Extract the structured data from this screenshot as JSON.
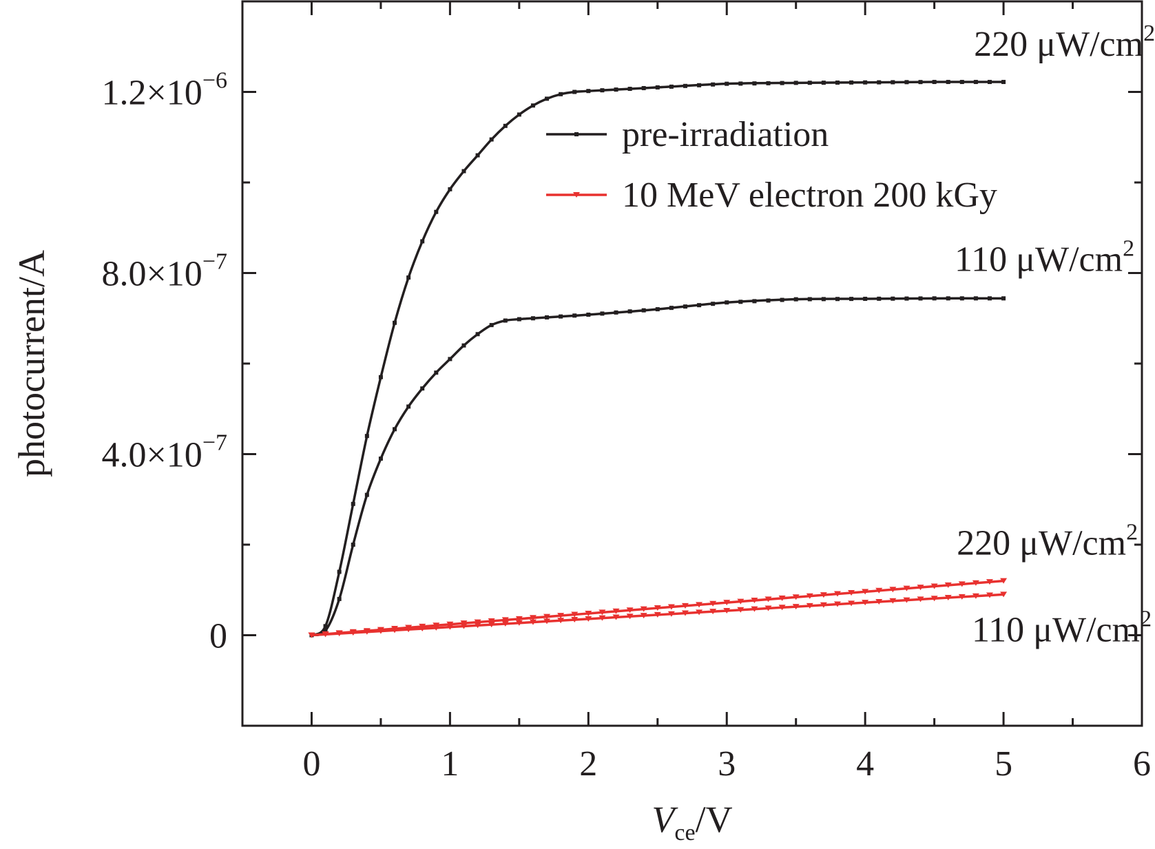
{
  "chart_data": {
    "type": "line",
    "xlabel_main": "V",
    "xlabel_sub": "ce",
    "xlabel_rest": "/V",
    "ylabel": "photocurrent/A",
    "xlim": [
      -0.5,
      6.0
    ],
    "ylim": [
      -2e-07,
      1.4e-06
    ],
    "x_ticks": [
      0,
      1,
      2,
      3,
      4,
      5,
      6
    ],
    "x_tick_labels": [
      "0",
      "1",
      "2",
      "3",
      "4",
      "5",
      "6"
    ],
    "y_ticks": [
      0,
      4e-07,
      8e-07,
      1.2e-06
    ],
    "y_tick_labels": [
      {
        "mant": "0",
        "exp": ""
      },
      {
        "mant": "4.0×10",
        "exp": "−7"
      },
      {
        "mant": "8.0×10",
        "exp": "−7"
      },
      {
        "mant": "1.2×10",
        "exp": "−6"
      }
    ],
    "y_minor_ticks": [
      -2e-07,
      2e-07,
      6e-07,
      1e-06,
      1.4e-06
    ],
    "grid": false,
    "legend_position": "top-right",
    "legend": [
      {
        "label": "pre-irradiation",
        "color": "#231f20",
        "marker": "square"
      },
      {
        "label": "10 MeV electron 200 kGy",
        "color": "#e8312f",
        "marker": "triangle-down"
      }
    ],
    "series": [
      {
        "legend_index": 0,
        "color": "#231f20",
        "marker": "square",
        "irradiance": "220 μW/cm2",
        "x": [
          0,
          0.1,
          0.2,
          0.3,
          0.4,
          0.5,
          0.6,
          0.7,
          0.8,
          0.9,
          1.0,
          1.1,
          1.2,
          1.3,
          1.4,
          1.5,
          1.6,
          1.7,
          1.8,
          1.9,
          2.0,
          2.5,
          3.0,
          3.5,
          4.0,
          4.5,
          5.0
        ],
        "y": [
          0,
          2e-08,
          1.4e-07,
          2.9e-07,
          4.4e-07,
          5.7e-07,
          6.9e-07,
          7.9e-07,
          8.7e-07,
          9.35e-07,
          9.85e-07,
          1.025e-06,
          1.06e-06,
          1.095e-06,
          1.125e-06,
          1.15e-06,
          1.17e-06,
          1.185e-06,
          1.195e-06,
          1.2e-06,
          1.202e-06,
          1.21e-06,
          1.218e-06,
          1.22e-06,
          1.221e-06,
          1.222e-06,
          1.222e-06
        ]
      },
      {
        "legend_index": 0,
        "color": "#231f20",
        "marker": "square",
        "irradiance": "110 μW/cm2",
        "x": [
          0,
          0.1,
          0.2,
          0.3,
          0.4,
          0.5,
          0.6,
          0.7,
          0.8,
          0.9,
          1.0,
          1.1,
          1.2,
          1.3,
          1.4,
          1.5,
          1.6,
          1.7,
          2.0,
          2.5,
          3.0,
          3.5,
          4.0,
          4.5,
          5.0
        ],
        "y": [
          0,
          1e-08,
          8e-08,
          2e-07,
          3.1e-07,
          3.9e-07,
          4.55e-07,
          5.05e-07,
          5.45e-07,
          5.8e-07,
          6.1e-07,
          6.4e-07,
          6.65e-07,
          6.85e-07,
          6.95e-07,
          6.98e-07,
          7e-07,
          7.02e-07,
          7.08e-07,
          7.2e-07,
          7.35e-07,
          7.42e-07,
          7.43e-07,
          7.44e-07,
          7.44e-07
        ]
      },
      {
        "legend_index": 1,
        "color": "#e8312f",
        "marker": "triangle-down",
        "irradiance": "220 μW/cm2",
        "x": [
          0,
          1,
          2,
          3,
          4,
          5
        ],
        "y": [
          0,
          2.4e-08,
          4.8e-08,
          7.2e-08,
          9.6e-08,
          1.2e-07
        ]
      },
      {
        "legend_index": 1,
        "color": "#e8312f",
        "marker": "triangle-down",
        "irradiance": "110 μW/cm2",
        "x": [
          0,
          1,
          2,
          3,
          4,
          5
        ],
        "y": [
          0,
          1.8e-08,
          3.6e-08,
          5.4e-08,
          7.2e-08,
          9e-08
        ]
      }
    ],
    "annotations": [
      {
        "main": "220 μW/cm",
        "sup": "2",
        "series_index": 0
      },
      {
        "main": "110 μW/cm",
        "sup": "2",
        "series_index": 1
      },
      {
        "main": "220 μW/cm",
        "sup": "2",
        "series_index": 2
      },
      {
        "main": "110 μW/cm",
        "sup": "2",
        "series_index": 3
      }
    ]
  }
}
